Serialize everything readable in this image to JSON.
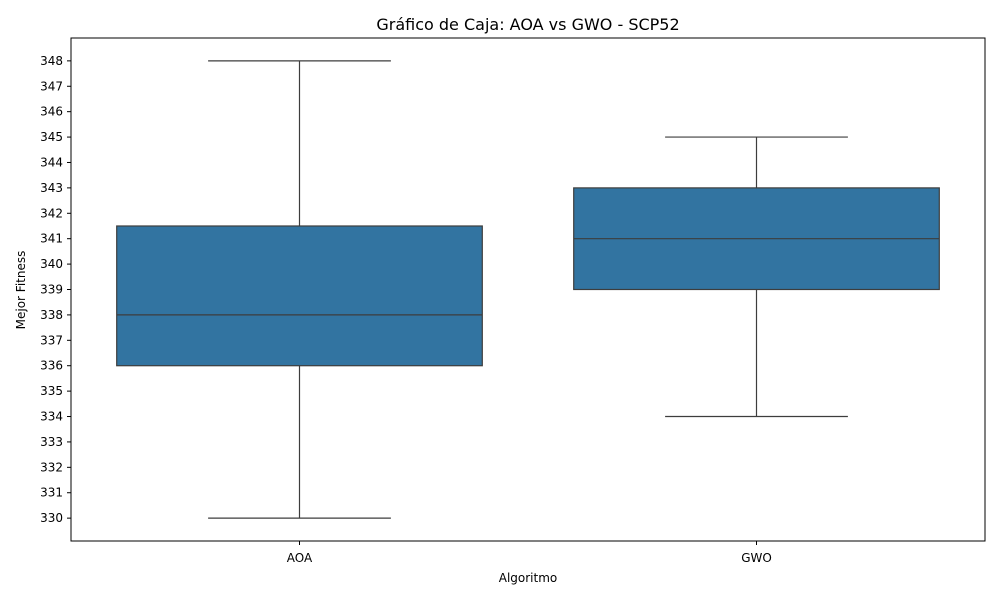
{
  "chart_data": {
    "type": "box",
    "title": "Gráfico de Caja: AOA vs GWO - SCP52",
    "xlabel": "Algoritmo",
    "ylabel": "Mejor Fitness",
    "categories": [
      "AOA",
      "GWO"
    ],
    "boxes": [
      {
        "category": "AOA",
        "whisker_low": 330,
        "q1": 336,
        "median": 338,
        "q3": 341.5,
        "whisker_high": 348
      },
      {
        "category": "GWO",
        "whisker_low": 334,
        "q1": 339,
        "median": 341,
        "q3": 343,
        "whisker_high": 345
      }
    ],
    "yticks": [
      330,
      331,
      332,
      333,
      334,
      335,
      336,
      337,
      338,
      339,
      340,
      341,
      342,
      343,
      344,
      345,
      346,
      347,
      348
    ],
    "ylim": [
      329.1,
      348.9
    ],
    "grid": false,
    "colors": {
      "box_fill": "#3274a1",
      "line": "#3d3d3d",
      "axis": "#000000"
    }
  }
}
